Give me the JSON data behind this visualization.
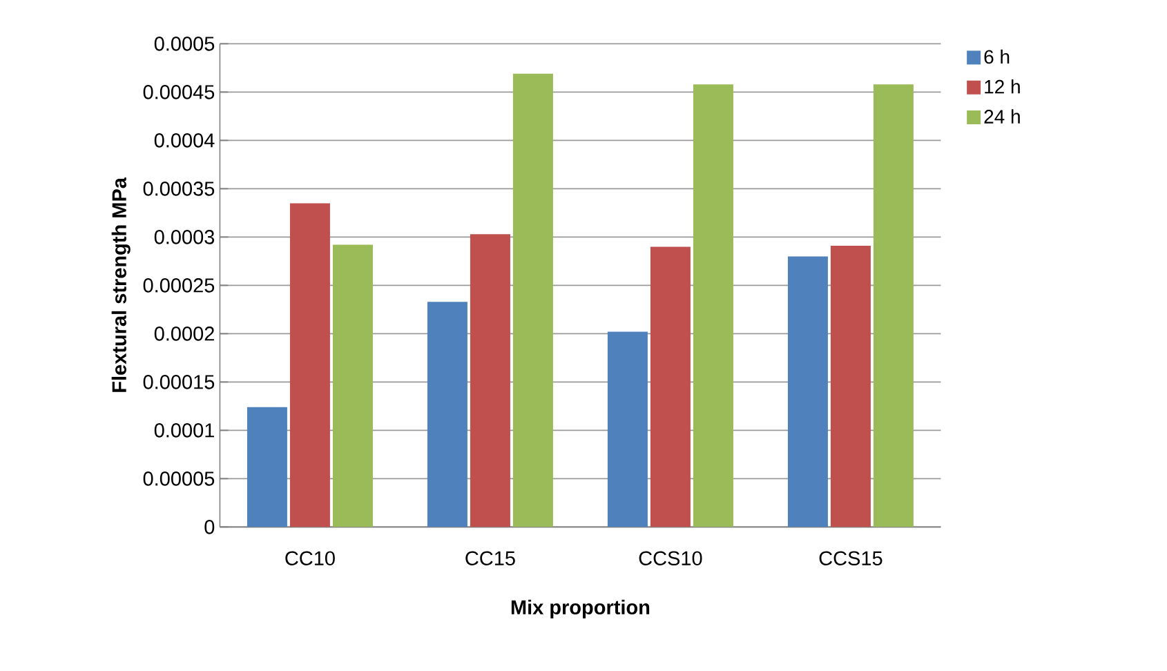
{
  "chart_data": {
    "type": "bar",
    "xlabel": "Mix proportion",
    "ylabel": "Flextural strength MPa",
    "categories": [
      "CC10",
      "CC15",
      "CCS10",
      "CCS15"
    ],
    "series": [
      {
        "name": "6 h",
        "color": "#4f81bd",
        "values": [
          0.000124,
          0.000233,
          0.000202,
          0.00028
        ]
      },
      {
        "name": "12 h",
        "color": "#c0504d",
        "values": [
          0.000335,
          0.000303,
          0.00029,
          0.000291
        ]
      },
      {
        "name": "24 h",
        "color": "#9bbb59",
        "values": [
          0.000292,
          0.000469,
          0.000458,
          0.000458
        ]
      }
    ],
    "ylim": [
      0,
      0.0005
    ],
    "yticks": [
      {
        "value": 0,
        "label": "0"
      },
      {
        "value": 5e-05,
        "label": "0.00005"
      },
      {
        "value": 0.0001,
        "label": "0.0001"
      },
      {
        "value": 0.00015,
        "label": "0.00015"
      },
      {
        "value": 0.0002,
        "label": "0.0002"
      },
      {
        "value": 0.00025,
        "label": "0.00025"
      },
      {
        "value": 0.0003,
        "label": "0.0003"
      },
      {
        "value": 0.00035,
        "label": "0.00035"
      },
      {
        "value": 0.0004,
        "label": "0.0004"
      },
      {
        "value": 0.00045,
        "label": "0.00045"
      },
      {
        "value": 0.0005,
        "label": "0.0005"
      }
    ],
    "grid": "y",
    "legend": "top right"
  }
}
